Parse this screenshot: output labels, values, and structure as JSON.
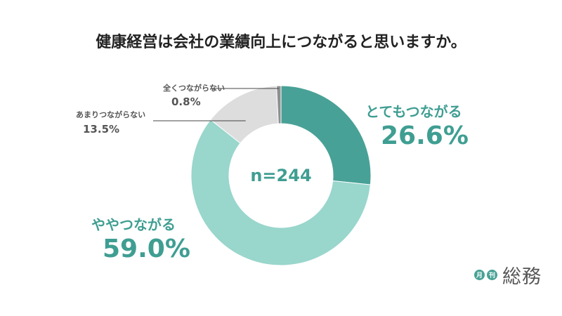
{
  "chart_data": {
    "type": "pie",
    "title": "健康経営は会社の業績向上につながると思いますか。",
    "center_label": "n=244",
    "slices": [
      {
        "label": "とてもつながる",
        "value": 26.6,
        "value_label": "26.6%",
        "color": "#48a196"
      },
      {
        "label": "ややつながる",
        "value": 59.0,
        "value_label": "59.0%",
        "color": "#99d6cc"
      },
      {
        "label": "あまりつながらない",
        "value": 13.5,
        "value_label": "13.5%",
        "color": "#dddddd"
      },
      {
        "label": "全くつながらない",
        "value": 0.8,
        "value_label": "0.8%",
        "color": "#8f8f8f"
      }
    ]
  },
  "logo": {
    "dot1": "月",
    "dot2": "刊",
    "text": "総務"
  }
}
